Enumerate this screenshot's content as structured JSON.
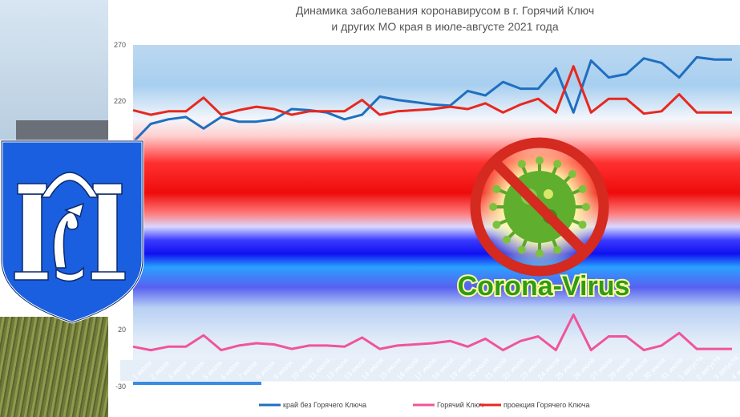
{
  "colors": {
    "series_krai": "#1f6fbf",
    "series_gk": "#f0549a",
    "series_proj": "#e8281e",
    "crest_blue": "#1a5fe0"
  },
  "icons": {
    "coat_of_arms": "goryachy-klyuch-coat-of-arms-icon",
    "virus": "virus-icon",
    "prohibition": "prohibition-sign-icon"
  },
  "badge": {
    "text": "Corona-Virus"
  },
  "chart_data": {
    "type": "line",
    "title": "Динамика заболевания коронавирусом в г. Горячий Ключ",
    "subtitle": "и других МО края в июле-августе 2021 года",
    "xlabel": "",
    "ylabel": "",
    "ylim": [
      -30,
      270
    ],
    "yticks": [
      270,
      220,
      20,
      -30
    ],
    "grid": false,
    "legend_position": "bottom",
    "categories": [
      "1 июля",
      "2 июля",
      "3 июля",
      "4 июля",
      "5 июля",
      "6 июля",
      "7 июля",
      "8 июля",
      "9 июля",
      "10 июля",
      "11 июля",
      "12 июля",
      "13 июля",
      "14 июля",
      "15 июля",
      "16 июля",
      "17 июля",
      "18 июля",
      "19 июля",
      "20 июля",
      "21 июля",
      "22 июля",
      "23 июля",
      "24 июля",
      "25 июля",
      "26 июля",
      "27 июля",
      "28 июля",
      "29 июля",
      "30 июля",
      "31 июля",
      "1 августа",
      "2 августа",
      "3 августа",
      "4 августа"
    ],
    "series": [
      {
        "name": "край без Горячего Ключа",
        "values": [
          184,
          200,
          204,
          206,
          196,
          206,
          202,
          202,
          204,
          213,
          212,
          210,
          204,
          208,
          224,
          221,
          219,
          217,
          216,
          229,
          225,
          237,
          231,
          231,
          249,
          210,
          256,
          241,
          244,
          258,
          254,
          241,
          259,
          257,
          257
        ]
      },
      {
        "name": "Горячий Ключ",
        "values": [
          5,
          2,
          5,
          5,
          15,
          2,
          6,
          8,
          7,
          3,
          6,
          6,
          5,
          13,
          3,
          6,
          7,
          8,
          10,
          5,
          12,
          2,
          10,
          14,
          2,
          33,
          2,
          14,
          14,
          2,
          6,
          17,
          3,
          3,
          3
        ]
      },
      {
        "name": "проекция Горячего Ключа",
        "values": [
          212,
          208,
          211,
          211,
          223,
          208,
          212,
          215,
          213,
          208,
          211,
          211,
          211,
          221,
          208,
          211,
          212,
          213,
          215,
          213,
          218,
          210,
          217,
          222,
          210,
          251,
          210,
          222,
          222,
          209,
          211,
          226,
          210,
          210,
          210
        ]
      }
    ]
  }
}
